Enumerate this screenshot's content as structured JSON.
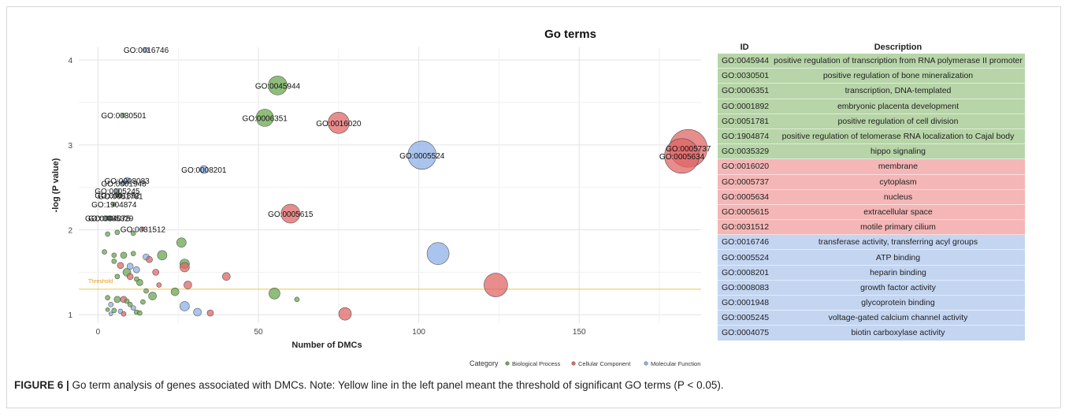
{
  "chart_data": {
    "type": "scatter",
    "title": "Go terms",
    "xlabel": "Number of DMCs",
    "ylabel": "-log (P value)",
    "xlim": [
      -6,
      188
    ],
    "ylim": [
      0.9,
      4.15
    ],
    "xticks": [
      0,
      50,
      100,
      150
    ],
    "yticks": [
      1,
      2,
      3,
      4
    ],
    "grid": true,
    "threshold": {
      "y": 1.301,
      "label": "Threshold",
      "color": "#f5c34a"
    },
    "legend": {
      "title": "Category",
      "placement": "bottom",
      "entries": [
        {
          "name": "Biological Process",
          "color": "#6aa84f"
        },
        {
          "name": "Cellular Component",
          "color": "#e06666"
        },
        {
          "name": "Molecular Function",
          "color": "#8fb0e8"
        }
      ]
    },
    "labeled_points": [
      {
        "id": "GO:0016746",
        "x": 15,
        "y": 4.12,
        "size": 3,
        "category": "Molecular Function"
      },
      {
        "id": "GO:0045944",
        "x": 56,
        "y": 3.7,
        "size": 12,
        "category": "Biological Process"
      },
      {
        "id": "GO:0030501",
        "x": 8,
        "y": 3.35,
        "size": 2.5,
        "category": "Biological Process"
      },
      {
        "id": "GO:0006351",
        "x": 52,
        "y": 3.32,
        "size": 11,
        "category": "Biological Process"
      },
      {
        "id": "GO:0016020",
        "x": 75,
        "y": 3.26,
        "size": 13.5,
        "category": "Cellular Component"
      },
      {
        "id": "GO:0005524",
        "x": 101,
        "y": 2.88,
        "size": 18,
        "category": "Molecular Function"
      },
      {
        "id": "GO:0005737",
        "x": 184,
        "y": 2.96,
        "size": 24,
        "category": "Cellular Component"
      },
      {
        "id": "GO:0005634",
        "x": 182,
        "y": 2.87,
        "size": 22,
        "category": "Cellular Component"
      },
      {
        "id": "GO:0008201",
        "x": 33,
        "y": 2.71,
        "size": 5,
        "category": "Molecular Function"
      },
      {
        "id": "GO:0008083",
        "x": 9,
        "y": 2.58,
        "size": 4,
        "category": "Molecular Function"
      },
      {
        "id": "GO:0001948",
        "x": 8,
        "y": 2.55,
        "size": 3,
        "category": "Molecular Function"
      },
      {
        "id": "GO:0005245",
        "x": 6,
        "y": 2.46,
        "size": 3,
        "category": "Molecular Function"
      },
      {
        "id": "GO:0001892",
        "x": 6,
        "y": 2.41,
        "size": 2.5,
        "category": "Biological Process"
      },
      {
        "id": "GO:0051781",
        "x": 7,
        "y": 2.4,
        "size": 2.5,
        "category": "Biological Process"
      },
      {
        "id": "GO:1904874",
        "x": 5,
        "y": 2.3,
        "size": 2.5,
        "category": "Biological Process"
      },
      {
        "id": "GO:0005615",
        "x": 60,
        "y": 2.19,
        "size": 12,
        "category": "Cellular Component"
      },
      {
        "id": "GO:0004075",
        "x": 3,
        "y": 2.14,
        "size": 2.5,
        "category": "Molecular Function"
      },
      {
        "id": "GO:0035329",
        "x": 4,
        "y": 2.14,
        "size": 2.5,
        "category": "Biological Process"
      },
      {
        "id": "GO:0031512",
        "x": 14,
        "y": 2.01,
        "size": 2.5,
        "category": "Cellular Component"
      }
    ],
    "other_points": [
      {
        "x": 26,
        "y": 1.85,
        "size": 6,
        "category": "Biological Process"
      },
      {
        "x": 106,
        "y": 1.72,
        "size": 14,
        "category": "Molecular Function"
      },
      {
        "x": 20,
        "y": 1.7,
        "size": 6,
        "category": "Biological Process"
      },
      {
        "x": 15,
        "y": 1.68,
        "size": 4,
        "category": "Molecular Function"
      },
      {
        "x": 16,
        "y": 1.65,
        "size": 4,
        "category": "Cellular Component"
      },
      {
        "x": 27,
        "y": 1.6,
        "size": 6,
        "category": "Biological Process"
      },
      {
        "x": 27,
        "y": 1.56,
        "size": 6,
        "category": "Cellular Component"
      },
      {
        "x": 3,
        "y": 1.95,
        "size": 3,
        "category": "Biological Process"
      },
      {
        "x": 6,
        "y": 1.97,
        "size": 3,
        "category": "Biological Process"
      },
      {
        "x": 11,
        "y": 1.96,
        "size": 3,
        "category": "Biological Process"
      },
      {
        "x": 2,
        "y": 1.74,
        "size": 3,
        "category": "Biological Process"
      },
      {
        "x": 5,
        "y": 1.7,
        "size": 3,
        "category": "Biological Process"
      },
      {
        "x": 8,
        "y": 1.7,
        "size": 4,
        "category": "Biological Process"
      },
      {
        "x": 11,
        "y": 1.72,
        "size": 3,
        "category": "Biological Process"
      },
      {
        "x": 5,
        "y": 1.63,
        "size": 3,
        "category": "Biological Process"
      },
      {
        "x": 7,
        "y": 1.58,
        "size": 4,
        "category": "Cellular Component"
      },
      {
        "x": 10,
        "y": 1.57,
        "size": 4,
        "category": "Molecular Function"
      },
      {
        "x": 12,
        "y": 1.53,
        "size": 4,
        "category": "Molecular Function"
      },
      {
        "x": 9,
        "y": 1.5,
        "size": 5,
        "category": "Biological Process"
      },
      {
        "x": 18,
        "y": 1.5,
        "size": 4,
        "category": "Cellular Component"
      },
      {
        "x": 6,
        "y": 1.45,
        "size": 3,
        "category": "Biological Process"
      },
      {
        "x": 10,
        "y": 1.45,
        "size": 4,
        "category": "Cellular Component"
      },
      {
        "x": 12,
        "y": 1.42,
        "size": 3,
        "category": "Biological Process"
      },
      {
        "x": 13,
        "y": 1.38,
        "size": 4,
        "category": "Biological Process"
      },
      {
        "x": 40,
        "y": 1.45,
        "size": 5,
        "category": "Cellular Component"
      },
      {
        "x": 19,
        "y": 1.35,
        "size": 3,
        "category": "Cellular Component"
      },
      {
        "x": 28,
        "y": 1.35,
        "size": 5,
        "category": "Cellular Component"
      },
      {
        "x": 124,
        "y": 1.35,
        "size": 15,
        "category": "Cellular Component"
      },
      {
        "x": 15,
        "y": 1.28,
        "size": 3,
        "category": "Biological Process"
      },
      {
        "x": 24,
        "y": 1.27,
        "size": 5,
        "category": "Biological Process"
      },
      {
        "x": 55,
        "y": 1.25,
        "size": 7,
        "category": "Biological Process"
      },
      {
        "x": 17,
        "y": 1.22,
        "size": 5,
        "category": "Biological Process"
      },
      {
        "x": 3,
        "y": 1.2,
        "size": 3,
        "category": "Biological Process"
      },
      {
        "x": 6,
        "y": 1.18,
        "size": 4,
        "category": "Biological Process"
      },
      {
        "x": 8,
        "y": 1.18,
        "size": 4,
        "category": "Cellular Component"
      },
      {
        "x": 9,
        "y": 1.16,
        "size": 3,
        "category": "Biological Process"
      },
      {
        "x": 62,
        "y": 1.18,
        "size": 3,
        "category": "Biological Process"
      },
      {
        "x": 14,
        "y": 1.15,
        "size": 3,
        "category": "Biological Process"
      },
      {
        "x": 4,
        "y": 1.12,
        "size": 3,
        "category": "Molecular Function"
      },
      {
        "x": 10,
        "y": 1.12,
        "size": 3,
        "category": "Biological Process"
      },
      {
        "x": 27,
        "y": 1.1,
        "size": 6,
        "category": "Molecular Function"
      },
      {
        "x": 11,
        "y": 1.08,
        "size": 3,
        "category": "Molecular Function"
      },
      {
        "x": 3,
        "y": 1.06,
        "size": 2.5,
        "category": "Biological Process"
      },
      {
        "x": 5,
        "y": 1.05,
        "size": 3,
        "category": "Biological Process"
      },
      {
        "x": 7,
        "y": 1.04,
        "size": 3,
        "category": "Molecular Function"
      },
      {
        "x": 12,
        "y": 1.03,
        "size": 3,
        "category": "Biological Process"
      },
      {
        "x": 31,
        "y": 1.03,
        "size": 5,
        "category": "Molecular Function"
      },
      {
        "x": 35,
        "y": 1.02,
        "size": 4,
        "category": "Cellular Component"
      },
      {
        "x": 77,
        "y": 1.01,
        "size": 8,
        "category": "Cellular Component"
      },
      {
        "x": 4,
        "y": 1.01,
        "size": 2.5,
        "category": "Molecular Function"
      },
      {
        "x": 8,
        "y": 1.01,
        "size": 3,
        "category": "Cellular Component"
      },
      {
        "x": 13,
        "y": 1.02,
        "size": 3,
        "category": "Biological Process"
      }
    ],
    "table": {
      "headers": [
        "ID",
        "Description"
      ],
      "rows": [
        {
          "id": "GO:0045944",
          "description": "positive regulation of transcription from RNA polymerase II promoter",
          "category": "Biological Process"
        },
        {
          "id": "GO:0030501",
          "description": "positive regulation of bone mineralization",
          "category": "Biological Process"
        },
        {
          "id": "GO:0006351",
          "description": "transcription, DNA-templated",
          "category": "Biological Process"
        },
        {
          "id": "GO:0001892",
          "description": "embryonic placenta development",
          "category": "Biological Process"
        },
        {
          "id": "GO:0051781",
          "description": "positive regulation of cell division",
          "category": "Biological Process"
        },
        {
          "id": "GO:1904874",
          "description": "positive regulation of telomerase RNA localization to Cajal body",
          "category": "Biological Process"
        },
        {
          "id": "GO:0035329",
          "description": "hippo signaling",
          "category": "Biological Process"
        },
        {
          "id": "GO:0016020",
          "description": "membrane",
          "category": "Cellular Component"
        },
        {
          "id": "GO:0005737",
          "description": "cytoplasm",
          "category": "Cellular Component"
        },
        {
          "id": "GO:0005634",
          "description": "nucleus",
          "category": "Cellular Component"
        },
        {
          "id": "GO:0005615",
          "description": "extracellular space",
          "category": "Cellular Component"
        },
        {
          "id": "GO:0031512",
          "description": "motile primary cilium",
          "category": "Cellular Component"
        },
        {
          "id": "GO:0016746",
          "description": "transferase activity, transferring acyl groups",
          "category": "Molecular Function"
        },
        {
          "id": "GO:0005524",
          "description": "ATP binding",
          "category": "Molecular Function"
        },
        {
          "id": "GO:0008201",
          "description": "heparin binding",
          "category": "Molecular Function"
        },
        {
          "id": "GO:0008083",
          "description": "growth factor activity",
          "category": "Molecular Function"
        },
        {
          "id": "GO:0001948",
          "description": "glycoprotein binding",
          "category": "Molecular Function"
        },
        {
          "id": "GO:0005245",
          "description": "voltage-gated calcium channel activity",
          "category": "Molecular Function"
        },
        {
          "id": "GO:0004075",
          "description": "biotin carboxylase activity",
          "category": "Molecular Function"
        }
      ],
      "row_colors": {
        "Biological Process": "#b7d5a8",
        "Cellular Component": "#f4b6b6",
        "Molecular Function": "#c3d5f1"
      }
    }
  },
  "caption": {
    "label": "FIGURE 6 |",
    "text": " Go term analysis of genes associated with DMCs. Note: Yellow line in the left panel meant the threshold of significant GO terms (P < 0.05)."
  }
}
